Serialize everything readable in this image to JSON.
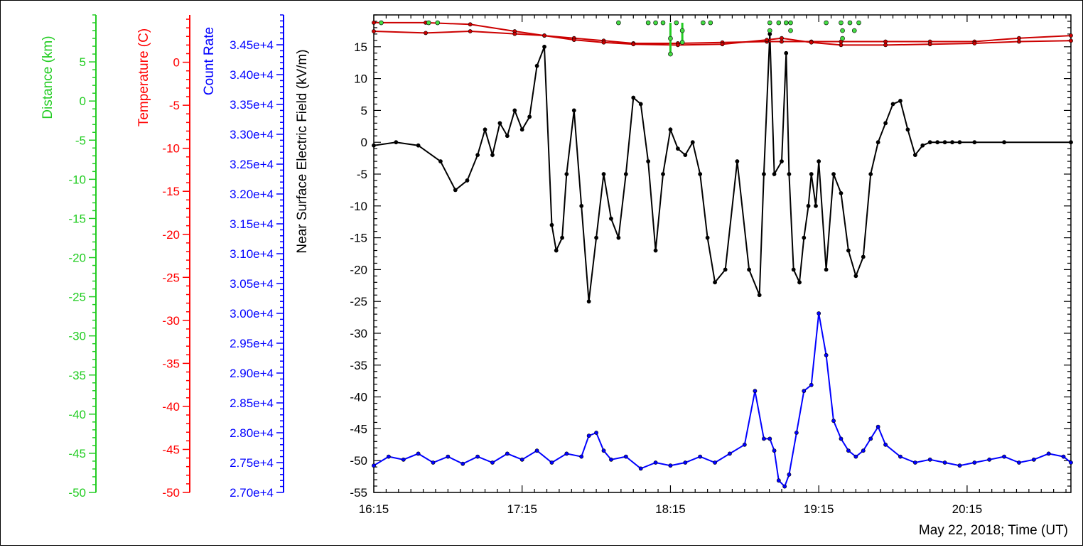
{
  "chart_data": {
    "type": "line",
    "time_label": "May 22, 2018; Time (UT)",
    "x_tick_labels": [
      "16:15",
      "17:15",
      "18:15",
      "19:15",
      "20:15"
    ],
    "x_ticks_hours": [
      16.25,
      17.25,
      18.25,
      19.25,
      20.25
    ],
    "xlim_hours": [
      16.25,
      20.95
    ],
    "grid": false,
    "axes": {
      "field": {
        "label": "Near Surface Electric Field (kV/m)",
        "ylim": [
          -55,
          20
        ],
        "tick_values": [
          15,
          10,
          5,
          0,
          -5,
          -10,
          -15,
          -20,
          -25,
          -30,
          -35,
          -40,
          -45,
          -50,
          -55
        ],
        "tick_labels": [
          "15",
          "10",
          "5",
          "0",
          "-5",
          "-10",
          "-15",
          "-20",
          "-25",
          "-30",
          "-35",
          "-40",
          "-45",
          "-50",
          "-55"
        ],
        "color": "#000000"
      },
      "count_rate": {
        "label": "Count Rate",
        "ylim": [
          27000,
          35000
        ],
        "tick_values": [
          34500,
          34000,
          33500,
          33000,
          32500,
          32000,
          31500,
          31000,
          30500,
          30000,
          29500,
          29000,
          28500,
          28000,
          27500,
          27000
        ],
        "tick_labels": [
          "3.45e+4",
          "3.40e+4",
          "3.35e+4",
          "3.30e+4",
          "3.25e+4",
          "3.20e+4",
          "3.15e+4",
          "3.10e+4",
          "3.05e+4",
          "3.00e+4",
          "2.95e+4",
          "2.90e+4",
          "2.85e+4",
          "2.80e+4",
          "2.75e+4",
          "2.70e+4"
        ],
        "color": "#0000ff"
      },
      "temperature": {
        "label": "Temperature (C)",
        "ylim": [
          -50,
          5.5
        ],
        "tick_values": [
          0,
          -5,
          -10,
          -15,
          -20,
          -25,
          -30,
          -35,
          -40,
          -45,
          -50
        ],
        "tick_labels": [
          "0",
          "-5",
          "-10",
          "-15",
          "-20",
          "-25",
          "-30",
          "-35",
          "-40",
          "-45",
          "-50"
        ],
        "color": "#ff0000"
      },
      "distance": {
        "label": "Distance (km)",
        "ylim": [
          -50,
          11
        ],
        "tick_values": [
          5,
          0,
          -5,
          -10,
          -15,
          -20,
          -25,
          -30,
          -35,
          -40,
          -45,
          -50
        ],
        "tick_labels": [
          "5",
          "0",
          "-5",
          "-10",
          "-15",
          "-20",
          "-25",
          "-30",
          "-35",
          "-40",
          "-45",
          "-50"
        ],
        "color": "#22cc22"
      }
    },
    "series": [
      {
        "axis": "field",
        "color": "#000000",
        "x": [
          16.25,
          16.4,
          16.55,
          16.7,
          16.8,
          16.88,
          16.95,
          17.0,
          17.05,
          17.1,
          17.15,
          17.2,
          17.25,
          17.3,
          17.35,
          17.4,
          17.45,
          17.48,
          17.52,
          17.55,
          17.6,
          17.65,
          17.7,
          17.75,
          17.8,
          17.85,
          17.9,
          17.95,
          18.0,
          18.05,
          18.1,
          18.15,
          18.2,
          18.25,
          18.3,
          18.35,
          18.4,
          18.45,
          18.5,
          18.55,
          18.62,
          18.7,
          18.78,
          18.85,
          18.88,
          18.92,
          18.95,
          19.0,
          19.03,
          19.05,
          19.08,
          19.12,
          19.15,
          19.18,
          19.2,
          19.23,
          19.25,
          19.3,
          19.35,
          19.4,
          19.45,
          19.5,
          19.55,
          19.6,
          19.65,
          19.7,
          19.75,
          19.8,
          19.85,
          19.9,
          19.95,
          20.0,
          20.05,
          20.1,
          20.15,
          20.2,
          20.3,
          20.5,
          20.95
        ],
        "y": [
          -0.5,
          0,
          -0.5,
          -3,
          -7.5,
          -6,
          -2,
          2,
          -2,
          3,
          1,
          5,
          2,
          4,
          12,
          15,
          -13,
          -17,
          -15,
          -5,
          5,
          -10,
          -25,
          -15,
          -5,
          -12,
          -15,
          -5,
          7,
          6,
          -3,
          -17,
          -5,
          2,
          -1,
          -2,
          0,
          -5,
          -15,
          -22,
          -20,
          -3,
          -20,
          -24,
          -5,
          17,
          -5,
          -3,
          14,
          -5,
          -20,
          -22,
          -15,
          -10,
          -5,
          -10,
          -3,
          -20,
          -5,
          -8,
          -17,
          -21,
          -18,
          -5,
          0,
          3,
          6,
          6.5,
          2,
          -2,
          -0.5,
          0,
          0,
          0,
          0,
          0,
          0,
          0,
          0
        ]
      },
      {
        "axis": "count_rate",
        "color": "#0000ff",
        "x": [
          16.25,
          16.35,
          16.45,
          16.55,
          16.65,
          16.75,
          16.85,
          16.95,
          17.05,
          17.15,
          17.25,
          17.35,
          17.45,
          17.55,
          17.65,
          17.7,
          17.75,
          17.8,
          17.85,
          17.95,
          18.05,
          18.15,
          18.25,
          18.35,
          18.45,
          18.55,
          18.65,
          18.75,
          18.82,
          18.88,
          18.92,
          18.95,
          18.98,
          19.02,
          19.05,
          19.1,
          19.15,
          19.2,
          19.25,
          19.3,
          19.35,
          19.4,
          19.45,
          19.5,
          19.55,
          19.6,
          19.65,
          19.7,
          19.8,
          19.9,
          20.0,
          20.1,
          20.2,
          20.3,
          20.4,
          20.5,
          20.6,
          20.7,
          20.8,
          20.9,
          20.95
        ],
        "y": [
          27450,
          27600,
          27550,
          27650,
          27500,
          27600,
          27480,
          27600,
          27500,
          27650,
          27550,
          27700,
          27500,
          27650,
          27600,
          27950,
          28000,
          27700,
          27550,
          27600,
          27400,
          27500,
          27450,
          27500,
          27600,
          27500,
          27650,
          27800,
          28700,
          27900,
          27900,
          27700,
          27200,
          27100,
          27300,
          28000,
          28700,
          28800,
          30000,
          29300,
          28200,
          27900,
          27700,
          27600,
          27700,
          27900,
          28100,
          27800,
          27600,
          27500,
          27550,
          27500,
          27450,
          27500,
          27550,
          27600,
          27500,
          27550,
          27650,
          27600,
          27500
        ]
      },
      {
        "axis": "temperature",
        "color": "#cc0000",
        "x": [
          16.25,
          16.6,
          16.9,
          17.2,
          17.4,
          17.6,
          17.8,
          18.0,
          18.3,
          18.6,
          18.9,
          19.0,
          19.2,
          19.4,
          19.7,
          20.0,
          20.3,
          20.6,
          20.95
        ],
        "y": [
          4.6,
          4.6,
          4.4,
          3.6,
          3.1,
          2.8,
          2.5,
          2.2,
          2.2,
          2.3,
          2.4,
          2.4,
          2.4,
          2.4,
          2.4,
          2.4,
          2.4,
          2.8,
          3.1
        ]
      },
      {
        "axis": "temperature",
        "color": "#cc0000",
        "x": [
          16.25,
          16.6,
          16.9,
          17.2,
          17.4,
          17.6,
          17.8,
          18.0,
          18.3,
          18.6,
          18.9,
          19.0,
          19.2,
          19.4,
          19.7,
          20.0,
          20.3,
          20.6,
          20.95
        ],
        "y": [
          3.6,
          3.4,
          3.6,
          3.3,
          3.1,
          2.6,
          2.3,
          2.1,
          2.0,
          2.1,
          2.6,
          2.8,
          2.3,
          2.0,
          2.0,
          2.1,
          2.2,
          2.4,
          2.5
        ]
      }
    ],
    "distance_points": [
      {
        "x": 16.3,
        "y": 10
      },
      {
        "x": 16.62,
        "y": 10
      },
      {
        "x": 16.68,
        "y": 10
      },
      {
        "x": 17.9,
        "y": 10
      },
      {
        "x": 18.1,
        "y": 10
      },
      {
        "x": 18.15,
        "y": 10
      },
      {
        "x": 18.2,
        "y": 10
      },
      {
        "x": 18.25,
        "y": 8
      },
      {
        "x": 18.25,
        "y": 6
      },
      {
        "x": 18.29,
        "y": 10
      },
      {
        "x": 18.33,
        "y": 9
      },
      {
        "x": 18.33,
        "y": 7.5
      },
      {
        "x": 18.47,
        "y": 10
      },
      {
        "x": 18.52,
        "y": 10
      },
      {
        "x": 18.92,
        "y": 10
      },
      {
        "x": 18.92,
        "y": 9
      },
      {
        "x": 18.98,
        "y": 10
      },
      {
        "x": 19.03,
        "y": 10
      },
      {
        "x": 19.06,
        "y": 9
      },
      {
        "x": 19.06,
        "y": 10
      },
      {
        "x": 19.3,
        "y": 10
      },
      {
        "x": 19.4,
        "y": 10
      },
      {
        "x": 19.41,
        "y": 9
      },
      {
        "x": 19.41,
        "y": 8
      },
      {
        "x": 19.46,
        "y": 10
      },
      {
        "x": 19.49,
        "y": 9
      },
      {
        "x": 19.52,
        "y": 10
      }
    ],
    "distance_stems": [
      {
        "x": 18.25,
        "y0": 10,
        "y1": 6
      },
      {
        "x": 18.33,
        "y0": 10,
        "y1": 7.5
      }
    ]
  }
}
